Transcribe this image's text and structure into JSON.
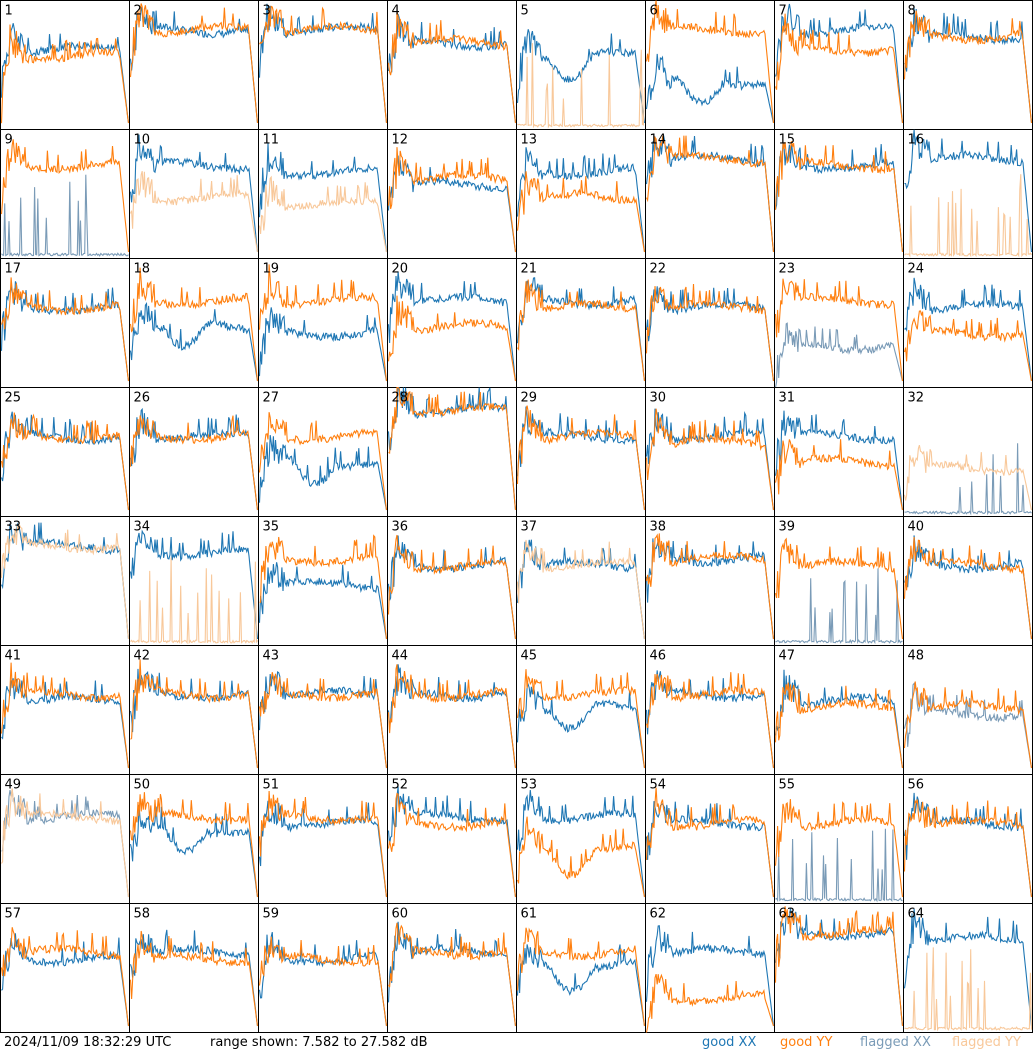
{
  "footer": {
    "timestamp": "2024/11/09 18:32:29 UTC",
    "range_text": "range shown: 7.582 to 27.582 dB"
  },
  "legend": {
    "good_xx": "good XX",
    "good_yy": "good YY",
    "flagged_xx": "flagged XX",
    "flagged_yy": "flagged YY"
  },
  "colors": {
    "good_xx": "#1f77b4",
    "good_yy": "#ff7f0e",
    "flagged_xx": "#7a9bb7",
    "flagged_yy": "#f8c89a"
  },
  "chart_data": {
    "type": "line",
    "layout": "8x8 small multiples",
    "ylim": [
      7.582,
      27.582
    ],
    "yunit": "dB",
    "panels": [
      {
        "id": 1,
        "xx": "good",
        "yy": "good",
        "xx_level": 20,
        "yy_level": 19,
        "spiky": "yy"
      },
      {
        "id": 2,
        "xx": "good",
        "yy": "good",
        "xx_level": 23,
        "yy_level": 23
      },
      {
        "id": 3,
        "xx": "good",
        "yy": "good",
        "xx_level": 23,
        "yy_level": 23
      },
      {
        "id": 4,
        "xx": "good",
        "yy": "good",
        "xx_level": 21,
        "yy_level": 21
      },
      {
        "id": 5,
        "xx": "good",
        "yy": "flagged",
        "xx_level": 19,
        "yy_level": 8,
        "dip": "xx"
      },
      {
        "id": 6,
        "xx": "good",
        "yy": "good",
        "xx_level": 15,
        "yy_level": 23,
        "dip": "xx"
      },
      {
        "id": 7,
        "xx": "good",
        "yy": "good",
        "xx_level": 23,
        "yy_level": 20
      },
      {
        "id": 8,
        "xx": "good",
        "yy": "good",
        "xx_level": 22,
        "yy_level": 22
      },
      {
        "id": 9,
        "xx": "flagged",
        "yy": "good",
        "xx_level": 8,
        "yy_level": 22
      },
      {
        "id": 10,
        "xx": "good",
        "yy": "flagged",
        "xx_level": 22,
        "yy_level": 17
      },
      {
        "id": 11,
        "xx": "good",
        "yy": "flagged",
        "xx_level": 21,
        "yy_level": 16
      },
      {
        "id": 12,
        "xx": "good",
        "yy": "good",
        "xx_level": 19,
        "yy_level": 20
      },
      {
        "id": 13,
        "xx": "good",
        "yy": "good",
        "xx_level": 21,
        "yy_level": 17
      },
      {
        "id": 14,
        "xx": "good",
        "yy": "good",
        "xx_level": 23,
        "yy_level": 23
      },
      {
        "id": 15,
        "xx": "good",
        "yy": "good",
        "xx_level": 22,
        "yy_level": 22
      },
      {
        "id": 16,
        "xx": "good",
        "yy": "flagged",
        "xx_level": 23,
        "yy_level": 8
      },
      {
        "id": 17,
        "xx": "good",
        "yy": "good",
        "xx_level": 20,
        "yy_level": 20
      },
      {
        "id": 18,
        "xx": "good",
        "yy": "good",
        "xx_level": 17,
        "yy_level": 21,
        "dip": "xx"
      },
      {
        "id": 19,
        "xx": "good",
        "yy": "good",
        "xx_level": 16,
        "yy_level": 21
      },
      {
        "id": 20,
        "xx": "good",
        "yy": "good",
        "xx_level": 21,
        "yy_level": 17
      },
      {
        "id": 21,
        "xx": "good",
        "yy": "good",
        "xx_level": 21,
        "yy_level": 20
      },
      {
        "id": 22,
        "xx": "good",
        "yy": "good",
        "xx_level": 20,
        "yy_level": 20
      },
      {
        "id": 23,
        "xx": "flagged",
        "yy": "good",
        "xx_level": 14,
        "yy_level": 21
      },
      {
        "id": 24,
        "xx": "good",
        "yy": "good",
        "xx_level": 20,
        "yy_level": 16
      },
      {
        "id": 25,
        "xx": "good",
        "yy": "good",
        "xx_level": 20,
        "yy_level": 20
      },
      {
        "id": 26,
        "xx": "good",
        "yy": "good",
        "xx_level": 20,
        "yy_level": 20
      },
      {
        "id": 27,
        "xx": "good",
        "yy": "good",
        "xx_level": 16,
        "yy_level": 20,
        "dip": "xx"
      },
      {
        "id": 28,
        "xx": "good",
        "yy": "good",
        "xx_level": 24,
        "yy_level": 24
      },
      {
        "id": 29,
        "xx": "good",
        "yy": "good",
        "xx_level": 20,
        "yy_level": 20
      },
      {
        "id": 30,
        "xx": "good",
        "yy": "good",
        "xx_level": 20,
        "yy_level": 19
      },
      {
        "id": 31,
        "xx": "good",
        "yy": "good",
        "xx_level": 20,
        "yy_level": 16
      },
      {
        "id": 32,
        "xx": "flagged",
        "yy": "flagged",
        "xx_level": 8,
        "yy_level": 15
      },
      {
        "id": 33,
        "xx": "good",
        "yy": "flagged",
        "xx_level": 23,
        "yy_level": 23
      },
      {
        "id": 34,
        "xx": "good",
        "yy": "flagged",
        "xx_level": 22,
        "yy_level": 8
      },
      {
        "id": 35,
        "xx": "good",
        "yy": "good",
        "xx_level": 17,
        "yy_level": 21
      },
      {
        "id": 36,
        "xx": "good",
        "yy": "good",
        "xx_level": 20,
        "yy_level": 20
      },
      {
        "id": 37,
        "xx": "good",
        "yy": "flagged",
        "xx_level": 20,
        "yy_level": 20
      },
      {
        "id": 38,
        "xx": "good",
        "yy": "good",
        "xx_level": 21,
        "yy_level": 21
      },
      {
        "id": 39,
        "xx": "flagged",
        "yy": "good",
        "xx_level": 8,
        "yy_level": 20
      },
      {
        "id": 40,
        "xx": "good",
        "yy": "good",
        "xx_level": 20,
        "yy_level": 20
      },
      {
        "id": 41,
        "xx": "good",
        "yy": "good",
        "xx_level": 19,
        "yy_level": 20
      },
      {
        "id": 42,
        "xx": "good",
        "yy": "good",
        "xx_level": 20,
        "yy_level": 20
      },
      {
        "id": 43,
        "xx": "good",
        "yy": "good",
        "xx_level": 20,
        "yy_level": 20
      },
      {
        "id": 44,
        "xx": "good",
        "yy": "good",
        "xx_level": 20,
        "yy_level": 20
      },
      {
        "id": 45,
        "xx": "good",
        "yy": "good",
        "xx_level": 18,
        "yy_level": 20,
        "dip": "xx"
      },
      {
        "id": 46,
        "xx": "good",
        "yy": "good",
        "xx_level": 20,
        "yy_level": 20
      },
      {
        "id": 47,
        "xx": "good",
        "yy": "good",
        "xx_level": 19,
        "yy_level": 18
      },
      {
        "id": 48,
        "xx": "flagged",
        "yy": "good",
        "xx_level": 17,
        "yy_level": 18
      },
      {
        "id": 49,
        "xx": "flagged",
        "yy": "flagged",
        "xx_level": 21,
        "yy_level": 21
      },
      {
        "id": 50,
        "xx": "good",
        "yy": "good",
        "xx_level": 19,
        "yy_level": 21,
        "dip": "xx"
      },
      {
        "id": 51,
        "xx": "good",
        "yy": "good",
        "xx_level": 20,
        "yy_level": 21
      },
      {
        "id": 52,
        "xx": "good",
        "yy": "good",
        "xx_level": 21,
        "yy_level": 20
      },
      {
        "id": 53,
        "xx": "good",
        "yy": "good",
        "xx_level": 21,
        "yy_level": 16,
        "dip": "yy"
      },
      {
        "id": 54,
        "xx": "good",
        "yy": "good",
        "xx_level": 20,
        "yy_level": 20
      },
      {
        "id": 55,
        "xx": "flagged",
        "yy": "good",
        "xx_level": 8,
        "yy_level": 20
      },
      {
        "id": 56,
        "xx": "good",
        "yy": "good",
        "xx_level": 20,
        "yy_level": 20
      },
      {
        "id": 57,
        "xx": "good",
        "yy": "good",
        "xx_level": 19,
        "yy_level": 20
      },
      {
        "id": 58,
        "xx": "good",
        "yy": "good",
        "xx_level": 20,
        "yy_level": 19
      },
      {
        "id": 59,
        "xx": "good",
        "yy": "good",
        "xx_level": 19,
        "yy_level": 19
      },
      {
        "id": 60,
        "xx": "good",
        "yy": "good",
        "xx_level": 20,
        "yy_level": 20
      },
      {
        "id": 61,
        "xx": "good",
        "yy": "good",
        "xx_level": 18,
        "yy_level": 20,
        "dip": "xx"
      },
      {
        "id": 62,
        "xx": "good",
        "yy": "good",
        "xx_level": 20,
        "yy_level": 13
      },
      {
        "id": 63,
        "xx": "good",
        "yy": "good",
        "xx_level": 23,
        "yy_level": 23
      },
      {
        "id": 64,
        "xx": "good",
        "yy": "flagged",
        "xx_level": 22,
        "yy_level": 8
      }
    ]
  }
}
